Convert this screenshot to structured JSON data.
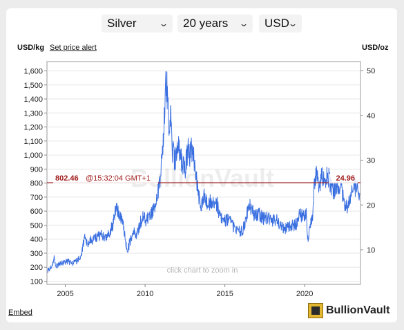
{
  "controls": {
    "metal": "Silver",
    "period": "20 years",
    "currency": "USD"
  },
  "header": {
    "left_unit": "USD/kg",
    "price_alert_link": "Set price alert",
    "right_unit": "USD/oz"
  },
  "footer": {
    "embed_link": "Embed",
    "brand": "BullionVault"
  },
  "chart_data": {
    "type": "line",
    "title": "",
    "xlabel": "",
    "ylabel_left": "USD/kg",
    "ylabel_right": "USD/oz",
    "x_ticks": [
      "2005",
      "2010",
      "2015",
      "2020"
    ],
    "xlim": [
      2003.85,
      2023.5
    ],
    "y_left_ticks": [
      "1,600",
      "1,500",
      "1,400",
      "1,300",
      "1,200",
      "1,100",
      "1,000",
      "900",
      "800",
      "700",
      "600",
      "500",
      "400",
      "300",
      "200",
      "100"
    ],
    "ylim_left": [
      100,
      1600
    ],
    "y_right_ticks": [
      "50",
      "40",
      "30",
      "20",
      "10"
    ],
    "ylim_right": [
      10,
      50
    ],
    "watermark": "BullionVault",
    "zoom_hint": "click chart to zoom in",
    "current_price": {
      "usd_per_kg": 802.46,
      "usd_per_kg_label": "802.46",
      "time_label": "@15:32:04 GMT+1",
      "usd_per_oz_label": "24.96",
      "line_color": "#a01a1a"
    },
    "series": [
      {
        "color": "#3a6fe0",
        "points": [
          [
            2003.9,
            175
          ],
          [
            2004.1,
            200
          ],
          [
            2004.3,
            260
          ],
          [
            2004.4,
            205
          ],
          [
            2004.6,
            220
          ],
          [
            2004.9,
            235
          ],
          [
            2005.2,
            240
          ],
          [
            2005.5,
            230
          ],
          [
            2005.8,
            250
          ],
          [
            2006.0,
            290
          ],
          [
            2006.2,
            410
          ],
          [
            2006.4,
            360
          ],
          [
            2006.6,
            390
          ],
          [
            2006.9,
            410
          ],
          [
            2007.2,
            430
          ],
          [
            2007.5,
            420
          ],
          [
            2007.8,
            450
          ],
          [
            2008.0,
            520
          ],
          [
            2008.2,
            630
          ],
          [
            2008.4,
            550
          ],
          [
            2008.6,
            540
          ],
          [
            2008.8,
            360
          ],
          [
            2008.9,
            320
          ],
          [
            2009.1,
            400
          ],
          [
            2009.3,
            460
          ],
          [
            2009.5,
            430
          ],
          [
            2009.7,
            520
          ],
          [
            2009.9,
            560
          ],
          [
            2010.1,
            530
          ],
          [
            2010.3,
            580
          ],
          [
            2010.5,
            600
          ],
          [
            2010.7,
            650
          ],
          [
            2010.9,
            800
          ],
          [
            2011.1,
            1000
          ],
          [
            2011.2,
            1250
          ],
          [
            2011.3,
            1590
          ],
          [
            2011.4,
            1400
          ],
          [
            2011.5,
            1150
          ],
          [
            2011.6,
            1300
          ],
          [
            2011.7,
            1050
          ],
          [
            2011.8,
            1000
          ],
          [
            2011.9,
            950
          ],
          [
            2012.1,
            1080
          ],
          [
            2012.3,
            950
          ],
          [
            2012.5,
            900
          ],
          [
            2012.7,
            1050
          ],
          [
            2012.8,
            1000
          ],
          [
            2012.9,
            1050
          ],
          [
            2013.1,
            950
          ],
          [
            2013.3,
            750
          ],
          [
            2013.5,
            650
          ],
          [
            2013.7,
            700
          ],
          [
            2013.9,
            650
          ],
          [
            2014.1,
            660
          ],
          [
            2014.3,
            650
          ],
          [
            2014.5,
            660
          ],
          [
            2014.7,
            560
          ],
          [
            2014.9,
            520
          ],
          [
            2015.1,
            540
          ],
          [
            2015.3,
            530
          ],
          [
            2015.5,
            490
          ],
          [
            2015.7,
            470
          ],
          [
            2015.9,
            460
          ],
          [
            2016.1,
            450
          ],
          [
            2016.3,
            540
          ],
          [
            2016.5,
            640
          ],
          [
            2016.7,
            610
          ],
          [
            2016.9,
            560
          ],
          [
            2017.1,
            580
          ],
          [
            2017.3,
            560
          ],
          [
            2017.5,
            540
          ],
          [
            2017.7,
            550
          ],
          [
            2017.9,
            530
          ],
          [
            2018.1,
            540
          ],
          [
            2018.3,
            530
          ],
          [
            2018.5,
            500
          ],
          [
            2018.7,
            470
          ],
          [
            2018.9,
            480
          ],
          [
            2019.1,
            500
          ],
          [
            2019.3,
            490
          ],
          [
            2019.5,
            510
          ],
          [
            2019.7,
            580
          ],
          [
            2019.9,
            560
          ],
          [
            2020.1,
            580
          ],
          [
            2020.2,
            400
          ],
          [
            2020.35,
            500
          ],
          [
            2020.5,
            580
          ],
          [
            2020.6,
            800
          ],
          [
            2020.7,
            870
          ],
          [
            2020.9,
            780
          ],
          [
            2021.1,
            860
          ],
          [
            2021.3,
            840
          ],
          [
            2021.5,
            840
          ],
          [
            2021.7,
            760
          ],
          [
            2021.9,
            740
          ],
          [
            2022.1,
            760
          ],
          [
            2022.3,
            750
          ],
          [
            2022.5,
            650
          ],
          [
            2022.7,
            620
          ],
          [
            2022.9,
            700
          ],
          [
            2023.1,
            780
          ],
          [
            2023.3,
            750
          ],
          [
            2023.45,
            730
          ]
        ]
      }
    ]
  }
}
